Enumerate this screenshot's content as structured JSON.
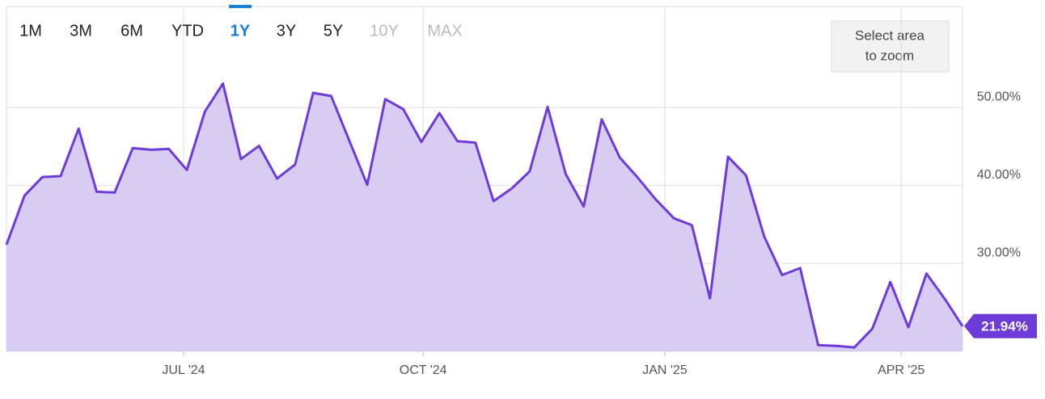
{
  "range_buttons": [
    {
      "label": "1M",
      "state": "normal"
    },
    {
      "label": "3M",
      "state": "normal"
    },
    {
      "label": "6M",
      "state": "normal"
    },
    {
      "label": "YTD",
      "state": "normal"
    },
    {
      "label": "1Y",
      "state": "active"
    },
    {
      "label": "3Y",
      "state": "normal"
    },
    {
      "label": "5Y",
      "state": "normal"
    },
    {
      "label": "10Y",
      "state": "disabled"
    },
    {
      "label": "MAX",
      "state": "disabled"
    }
  ],
  "zoom_hint": [
    "Select area",
    "to zoom"
  ],
  "chart_data": {
    "type": "area",
    "categories": [
      null,
      null,
      null,
      null,
      null,
      null,
      null,
      null,
      null,
      null,
      null,
      null,
      null,
      null,
      null,
      null,
      null,
      null,
      null,
      null,
      null,
      null,
      null,
      null,
      null,
      null,
      null,
      null,
      null,
      null,
      null,
      null,
      null,
      null,
      null,
      null,
      null,
      null,
      null,
      null,
      null,
      null,
      null,
      null,
      null,
      null,
      null,
      null,
      null,
      null,
      null,
      null,
      null,
      null
    ],
    "series": [
      {
        "color": "#6f3bd8",
        "fill": "#d8ccf3",
        "values": [
          32.4,
          38.7,
          41.1,
          41.2,
          47.3,
          39.2,
          39.1,
          44.8,
          44.6,
          44.7,
          42.0,
          49.5,
          53.1,
          43.4,
          45.1,
          40.9,
          42.7,
          51.9,
          51.5,
          45.8,
          40.1,
          51.1,
          49.8,
          45.6,
          49.3,
          45.7,
          45.5,
          38.0,
          39.6,
          41.8,
          50.1,
          41.5,
          37.3,
          48.5,
          43.6,
          41.0,
          38.2,
          35.8,
          34.9,
          25.5,
          43.7,
          41.3,
          33.5,
          28.5,
          29.4,
          19.5,
          19.4,
          19.2,
          21.6,
          27.6,
          21.8,
          28.7,
          25.5,
          21.94
        ],
        "value_labels": [
          null,
          null,
          null,
          null,
          null,
          null,
          null,
          null,
          null,
          null,
          null,
          null,
          null,
          null,
          null,
          null,
          null,
          null,
          null,
          null,
          null,
          null,
          null,
          null,
          null,
          null,
          null,
          null,
          null,
          null,
          null,
          null,
          null,
          null,
          null,
          null,
          null,
          null,
          null,
          null,
          null,
          null,
          null,
          null,
          null,
          null,
          null,
          null,
          null,
          null,
          null,
          null,
          null,
          "21.94%"
        ]
      }
    ],
    "ylim": [
      18.7,
      63
    ],
    "yticks": [
      {
        "value": 30,
        "label": "30.00%"
      },
      {
        "value": 40,
        "label": "40.00%"
      },
      {
        "value": 50,
        "label": "50.00%"
      }
    ],
    "xticks": [
      {
        "value": 9.82,
        "label": "JUL '24"
      },
      {
        "value": 23.1,
        "label": "OCT '24"
      },
      {
        "value": 36.5,
        "label": "JAN '25"
      },
      {
        "value": 49.6,
        "label": "APR '25"
      }
    ],
    "grid": true
  }
}
